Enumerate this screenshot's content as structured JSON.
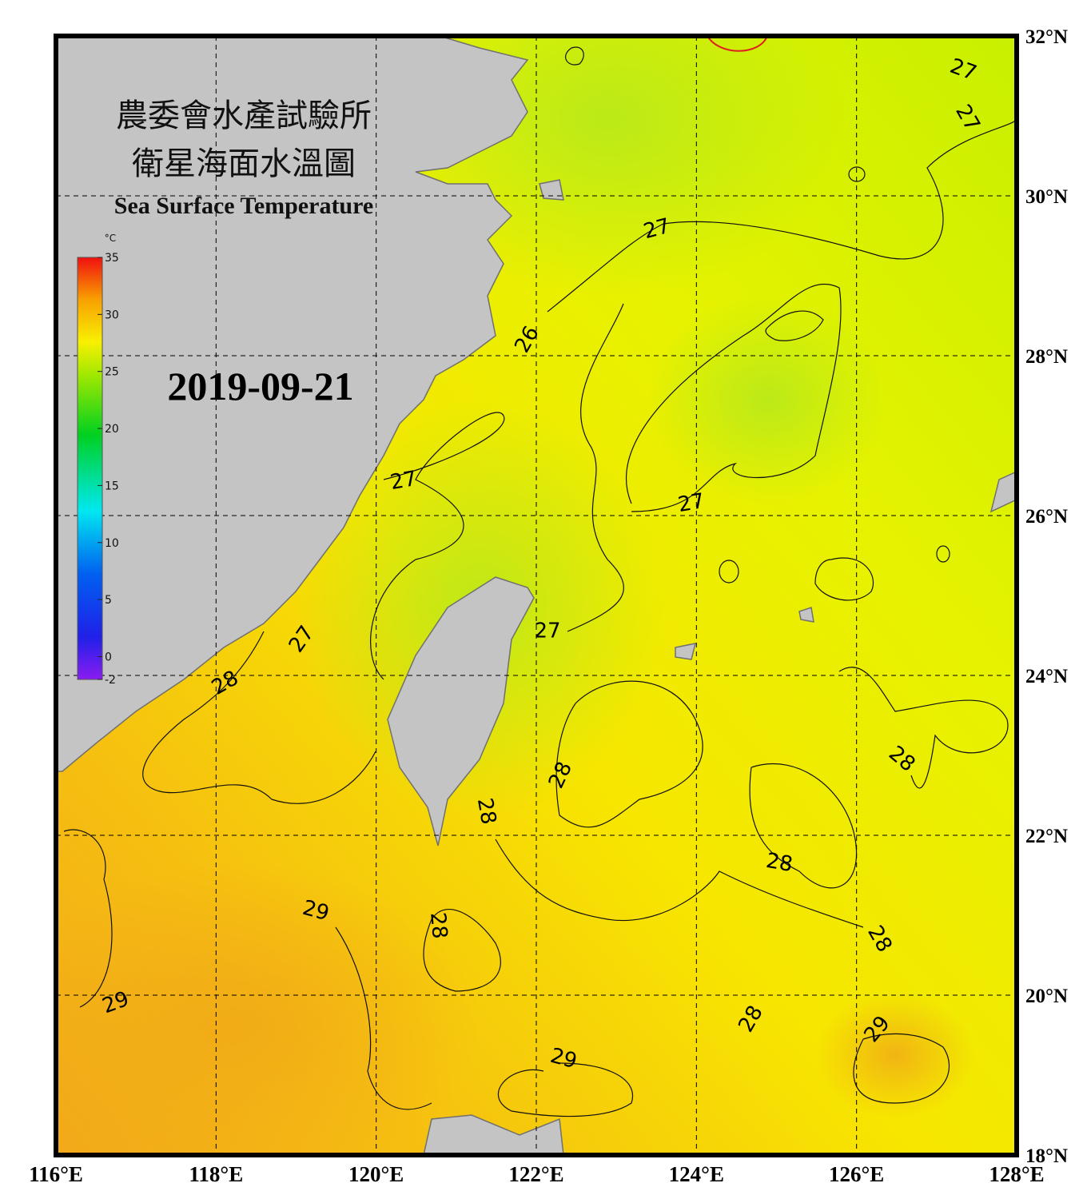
{
  "header": {
    "title_zh_1": "農委會水產試驗所",
    "title_zh_2": "衛星海面水溫圖",
    "title_en": "Sea Surface Temperature",
    "date": "2019-09-21"
  },
  "colorbar": {
    "unit": "°C",
    "range": [
      -2,
      35
    ],
    "ticks": [
      -2,
      0,
      5,
      10,
      15,
      20,
      25,
      30,
      35
    ]
  },
  "map": {
    "xlim": [
      116,
      128
    ],
    "ylim": [
      18,
      32
    ],
    "lon_ticks": [
      {
        "value": 116,
        "label": "116°E"
      },
      {
        "value": 118,
        "label": "118°E"
      },
      {
        "value": 120,
        "label": "120°E"
      },
      {
        "value": 122,
        "label": "122°E"
      },
      {
        "value": 124,
        "label": "124°E"
      },
      {
        "value": 126,
        "label": "126°E"
      },
      {
        "value": 128,
        "label": "128°E"
      }
    ],
    "lat_ticks": [
      {
        "value": 18,
        "label": "18°N"
      },
      {
        "value": 20,
        "label": "20°N"
      },
      {
        "value": 22,
        "label": "22°N"
      },
      {
        "value": 24,
        "label": "24°N"
      },
      {
        "value": 26,
        "label": "26°N"
      },
      {
        "value": 28,
        "label": "28°N"
      },
      {
        "value": 30,
        "label": "30°N"
      },
      {
        "value": 32,
        "label": "32°N"
      }
    ],
    "contour_labels": [
      27,
      27,
      27,
      26,
      27,
      27,
      27,
      27,
      28,
      28,
      28,
      28,
      28,
      29,
      28,
      28,
      29,
      28,
      29,
      29
    ]
  }
}
